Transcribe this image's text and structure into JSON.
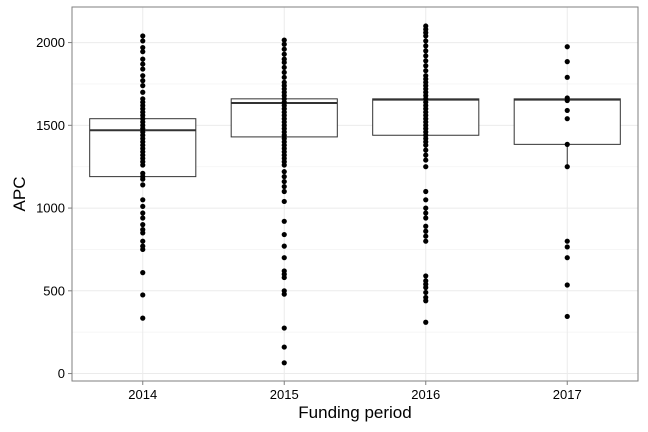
{
  "chart_data": {
    "type": "boxplot",
    "xlabel": "Funding period",
    "ylabel": "APC",
    "categories": [
      "2014",
      "2015",
      "2016",
      "2017"
    ],
    "yticks": [
      0,
      500,
      1000,
      1500,
      2000
    ],
    "ylim": [
      -45,
      2215
    ],
    "grid": true,
    "legend": "none",
    "colors": {
      "point": "#000000",
      "box_stroke": "#333333",
      "grid": "#ebebeb",
      "panel_border": "#7f7f7f"
    },
    "boxes": [
      {
        "category": "2014",
        "q1": 1190,
        "median": 1470,
        "q3": 1540,
        "whisker_low": 1190,
        "whisker_high": 1540
      },
      {
        "category": "2015",
        "q1": 1430,
        "median": 1635,
        "q3": 1660,
        "whisker_low": 1430,
        "whisker_high": 1660
      },
      {
        "category": "2016",
        "q1": 1440,
        "median": 1655,
        "q3": 1660,
        "whisker_low": 1440,
        "whisker_high": 1660
      },
      {
        "category": "2017",
        "q1": 1385,
        "median": 1655,
        "q3": 1660,
        "whisker_low": 1250,
        "whisker_high": 1660
      }
    ],
    "points": [
      {
        "category": "2014",
        "values": [
          2040,
          2010,
          1970,
          1945,
          1900,
          1870,
          1840,
          1800,
          1770,
          1740,
          1700,
          1660,
          1640,
          1620,
          1600,
          1580,
          1560,
          1540,
          1520,
          1500,
          1480,
          1460,
          1440,
          1420,
          1400,
          1380,
          1360,
          1340,
          1320,
          1300,
          1280,
          1260,
          1210,
          1190,
          1175,
          1140,
          1050,
          1010,
          970,
          940,
          900,
          870,
          850,
          800,
          770,
          750,
          610,
          475,
          335
        ]
      },
      {
        "category": "2015",
        "values": [
          2015,
          1990,
          1960,
          1930,
          1900,
          1880,
          1850,
          1820,
          1790,
          1760,
          1740,
          1720,
          1700,
          1680,
          1660,
          1640,
          1620,
          1600,
          1580,
          1560,
          1540,
          1520,
          1500,
          1480,
          1460,
          1440,
          1420,
          1400,
          1380,
          1360,
          1340,
          1320,
          1300,
          1280,
          1260,
          1220,
          1190,
          1160,
          1130,
          1100,
          1040,
          920,
          840,
          770,
          700,
          620,
          600,
          580,
          500,
          480,
          275,
          160,
          65
        ]
      },
      {
        "category": "2016",
        "values": [
          2100,
          2080,
          2060,
          2040,
          2010,
          1980,
          1950,
          1920,
          1890,
          1860,
          1830,
          1800,
          1780,
          1760,
          1740,
          1720,
          1700,
          1680,
          1660,
          1640,
          1620,
          1600,
          1580,
          1560,
          1540,
          1520,
          1500,
          1480,
          1460,
          1440,
          1420,
          1400,
          1380,
          1350,
          1320,
          1290,
          1250,
          1100,
          1050,
          1000,
          970,
          940,
          890,
          860,
          830,
          800,
          590,
          560,
          540,
          520,
          490,
          460,
          440,
          310
        ]
      },
      {
        "category": "2017",
        "values": [
          1975,
          1885,
          1790,
          1665,
          1650,
          1590,
          1540,
          1385,
          1250,
          800,
          765,
          700,
          535,
          345
        ]
      }
    ]
  }
}
